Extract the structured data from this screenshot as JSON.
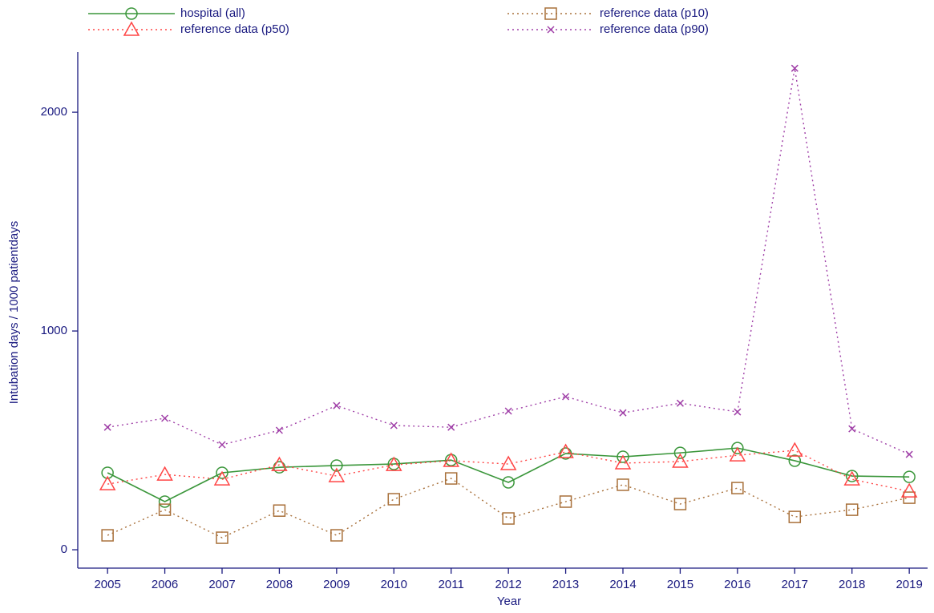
{
  "chart_data": {
    "type": "line",
    "x_label": "Year",
    "y_label": "Intubation days / 1000 patientdays",
    "x": [
      2005,
      2006,
      2007,
      2008,
      2009,
      2010,
      2011,
      2012,
      2013,
      2014,
      2015,
      2016,
      2017,
      2018,
      2019
    ],
    "xlim": [
      2004.48,
      2019.32
    ],
    "xticks": [
      2005,
      2006,
      2007,
      2008,
      2009,
      2010,
      2011,
      2012,
      2013,
      2014,
      2015,
      2016,
      2017,
      2018,
      2019
    ],
    "ylim": [
      -84,
      2275
    ],
    "yticks": [
      0,
      1000,
      2000
    ],
    "legend": "top",
    "series": [
      {
        "name": "hospital (all)",
        "color": "#3a963a",
        "line_style": "solid",
        "marker": "circle",
        "values": [
          352,
          220,
          352,
          377,
          385,
          392,
          410,
          308,
          440,
          425,
          443,
          465,
          407,
          337,
          333
        ]
      },
      {
        "name": "reference data (p10)",
        "color": "#a8703a",
        "line_style": "dotted",
        "marker": "square",
        "values": [
          66,
          183,
          55,
          179,
          66,
          231,
          326,
          143,
          220,
          297,
          209,
          282,
          150,
          183,
          238
        ]
      },
      {
        "name": "reference data (p50)",
        "color": "#ff4545",
        "line_style": "dotted",
        "marker": "triangle",
        "values": [
          300,
          344,
          322,
          388,
          337,
          388,
          407,
          392,
          447,
          396,
          403,
          432,
          454,
          322,
          267
        ]
      },
      {
        "name": "reference data (p90)",
        "color": "#a040a8",
        "line_style": "dotted",
        "marker": "x",
        "values": [
          560,
          601,
          480,
          546,
          659,
          568,
          560,
          634,
          700,
          626,
          670,
          630,
          2201,
          553,
          436
        ]
      }
    ]
  }
}
